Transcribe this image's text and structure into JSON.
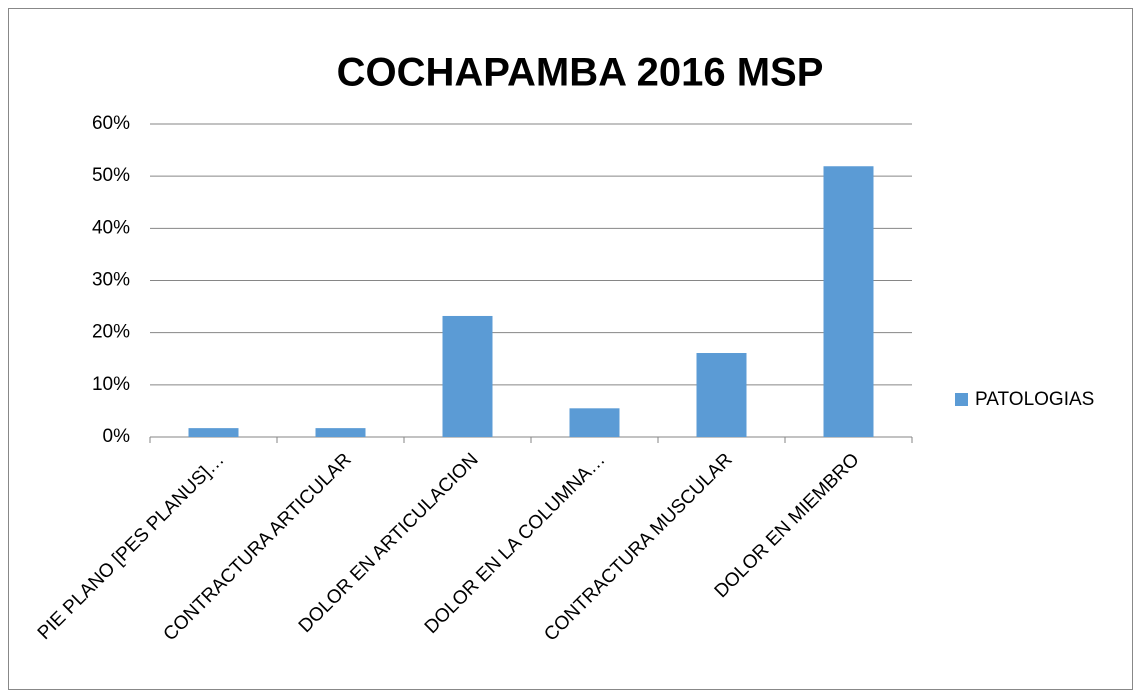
{
  "chart_data": {
    "type": "bar",
    "title": "COCHAPAMBA 2016 MSP",
    "categories": [
      "PIE PLANO [PES PLANUS]…",
      "CONTRACTURA ARTICULAR",
      "DOLOR EN ARTICULACION",
      "DOLOR EN LA COLUMNA…",
      "CONTRACTURA MUSCULAR",
      "DOLOR EN MIEMBRO"
    ],
    "series": [
      {
        "name": "PATOLOGIAS",
        "color": "#5b9bd5",
        "values": [
          1.7,
          1.7,
          23.2,
          5.5,
          16.1,
          51.9
        ]
      }
    ],
    "ylim": [
      0,
      60
    ],
    "yticks": [
      {
        "value": 0,
        "label": "0%"
      },
      {
        "value": 10,
        "label": "10%"
      },
      {
        "value": 20,
        "label": "20%"
      },
      {
        "value": 30,
        "label": "30%"
      },
      {
        "value": 40,
        "label": "40%"
      },
      {
        "value": 50,
        "label": "50%"
      },
      {
        "value": 60,
        "label": "60%"
      }
    ],
    "grid": true,
    "legend": "right"
  }
}
